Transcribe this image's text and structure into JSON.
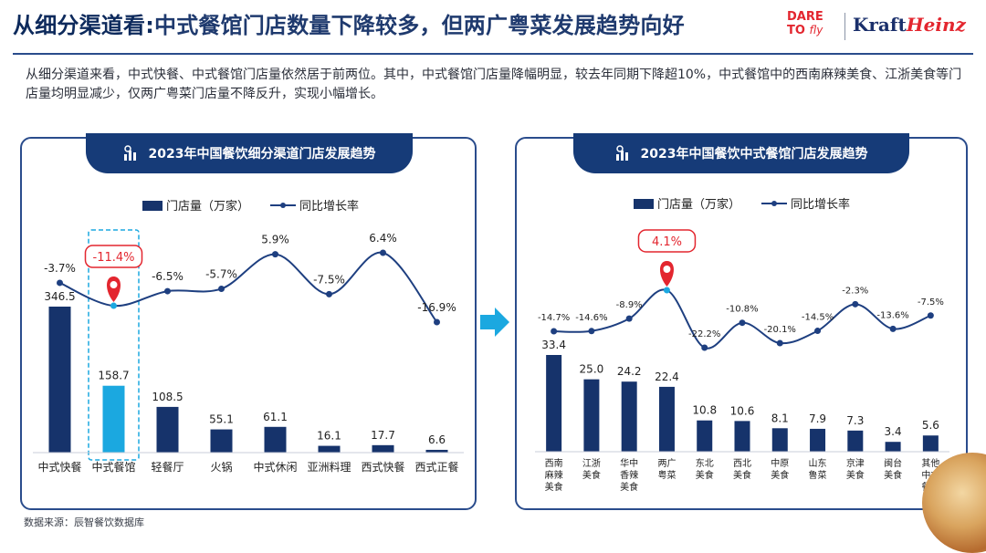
{
  "header": {
    "title_lead": "从细分渠道看:",
    "title_rest": "中式餐馆门店数量下降较多，但两广粤菜发展趋势向好",
    "logo_dare_line1": "DARE",
    "logo_dare_line2": "TO",
    "logo_dare_fly": "fly",
    "logo_kraft": "Kraft",
    "logo_heinz": "Heinz"
  },
  "description": "从细分渠道来看，中式快餐、中式餐馆门店量依然居于前两位。其中，中式餐馆门店量降幅明显，较去年同期下降超10%，中式餐馆中的西南麻辣美食、江浙美食等门店量均明显减少，仅两广粤菜门店量不降反升，实现小幅增长。",
  "source": "数据来源：辰智餐饮数据库",
  "colors": {
    "navy": "#163b78",
    "bar": "#16336b",
    "highlight_bar": "#1ba8e0",
    "callout_red": "#e3262f",
    "line": "#1e3f80"
  },
  "chart_data": [
    {
      "type": "bar",
      "title": "2023年中国餐饮细分渠道门店发展趋势",
      "legend": [
        "门店量（万家）",
        "同比增长率"
      ],
      "legend_position": "top-center",
      "categories": [
        "中式快餐",
        "中式餐馆",
        "轻餐厅",
        "火锅",
        "中式休闲",
        "亚洲料理",
        "西式快餐",
        "西式正餐"
      ],
      "series": [
        {
          "name": "门店量（万家）",
          "type": "bar",
          "values": [
            346.5,
            158.7,
            108.5,
            55.1,
            61.1,
            16.1,
            17.7,
            6.6
          ]
        },
        {
          "name": "同比增长率",
          "type": "line",
          "values": [
            -3.7,
            -11.4,
            -6.5,
            -5.7,
            5.9,
            -7.5,
            6.4,
            -16.9
          ]
        }
      ],
      "highlight_index": 1,
      "highlight_label": "-11.4%"
    },
    {
      "type": "bar",
      "title": "2023年中国餐饮中式餐馆门店发展趋势",
      "legend": [
        "门店量（万家）",
        "同比增长率"
      ],
      "legend_position": "top-center",
      "categories": [
        "西南麻辣美食",
        "江浙美食",
        "华中香辣美食",
        "两广粤菜",
        "东北美食",
        "西北美食",
        "中原美食",
        "山东鲁菜",
        "京津美食",
        "闽台美食",
        "其他中式餐馆"
      ],
      "series": [
        {
          "name": "门店量（万家）",
          "type": "bar",
          "values": [
            33.4,
            25.0,
            24.2,
            22.4,
            10.8,
            10.6,
            8.1,
            7.9,
            7.3,
            3.4,
            5.6
          ]
        },
        {
          "name": "同比增长率",
          "type": "line",
          "values": [
            -14.7,
            -14.6,
            -8.9,
            4.1,
            -22.2,
            -10.8,
            -20.1,
            -14.5,
            -2.3,
            -13.6,
            -7.5
          ]
        }
      ],
      "highlight_index": 3,
      "highlight_label": "4.1%"
    }
  ]
}
